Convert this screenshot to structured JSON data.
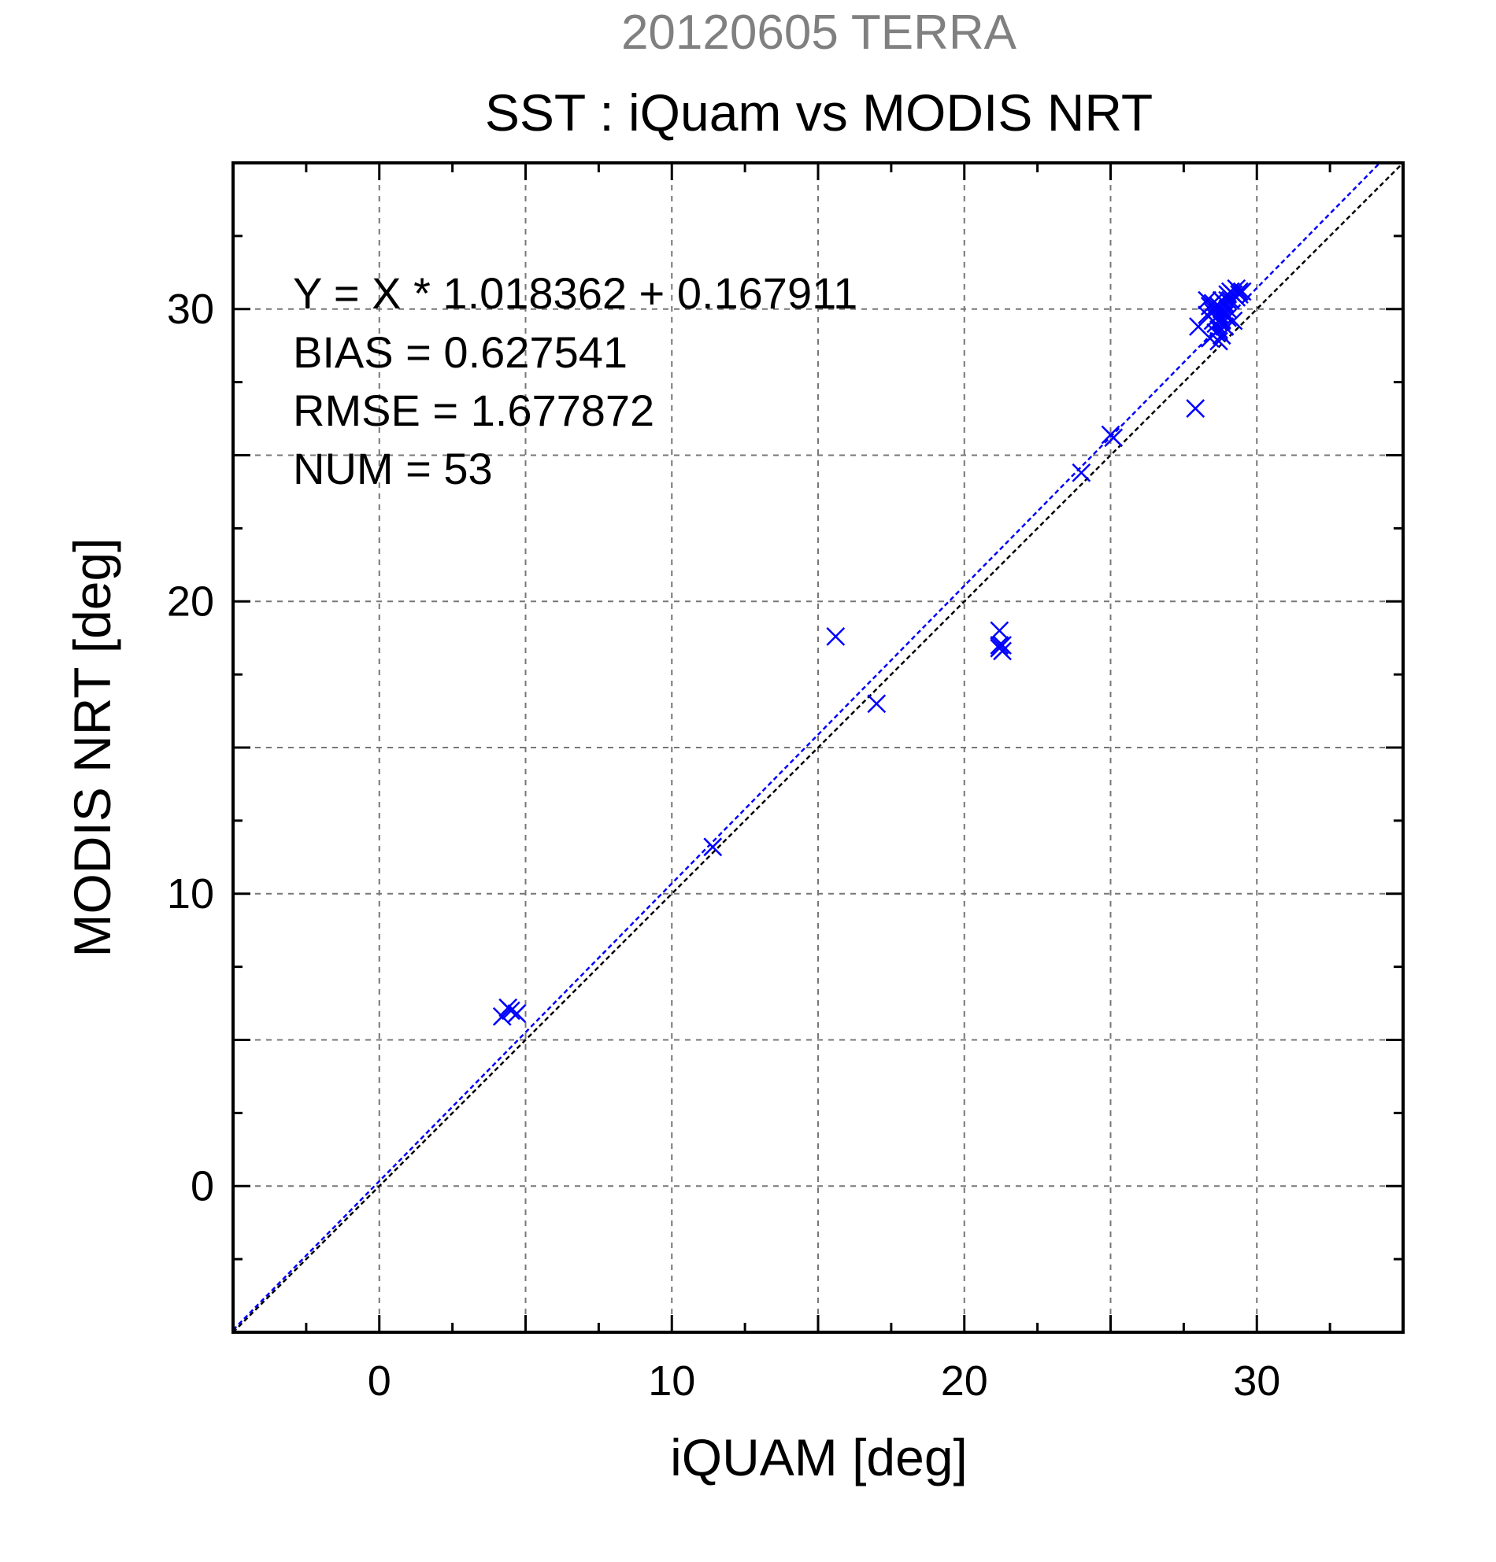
{
  "chart_data": {
    "type": "scatter",
    "supertitle": "20120605 TERRA",
    "title": "SST : iQuam vs MODIS NRT",
    "xlabel": "iQUAM [deg]",
    "ylabel": "MODIS NRT [deg]",
    "xlim": [
      -5,
      35
    ],
    "ylim": [
      -5,
      35
    ],
    "xticks": [
      0,
      10,
      20,
      30
    ],
    "yticks": [
      0,
      10,
      20,
      30
    ],
    "grid": true,
    "annotations": [
      "Y = X * 1.018362 + 0.167911",
      "BIAS = 0.627541",
      "RMSE = 1.677872",
      "NUM = 53"
    ],
    "fit": {
      "slope": 1.018362,
      "intercept": 0.167911
    },
    "series": [
      {
        "color": "#0000ff",
        "marker": "x",
        "points": [
          [
            4.2,
            5.8
          ],
          [
            4.5,
            6.0
          ],
          [
            4.7,
            5.9
          ],
          [
            4.4,
            6.1
          ],
          [
            11.4,
            11.6
          ],
          [
            15.6,
            18.8
          ],
          [
            17.0,
            16.5
          ],
          [
            21.2,
            19.0
          ],
          [
            21.2,
            18.5
          ],
          [
            21.3,
            18.3
          ],
          [
            21.2,
            18.4
          ],
          [
            21.3,
            18.5
          ],
          [
            24.0,
            24.4
          ],
          [
            25.0,
            25.7
          ],
          [
            25.1,
            25.6
          ],
          [
            27.9,
            26.6
          ],
          [
            28.0,
            29.4
          ],
          [
            28.3,
            29.8
          ],
          [
            28.3,
            30.3
          ],
          [
            28.4,
            30.1
          ],
          [
            28.4,
            29.0
          ],
          [
            28.5,
            29.6
          ],
          [
            28.5,
            29.9
          ],
          [
            28.6,
            29.2
          ],
          [
            28.6,
            30.0
          ],
          [
            28.6,
            29.5
          ],
          [
            28.7,
            29.8
          ],
          [
            28.7,
            29.3
          ],
          [
            28.7,
            28.9
          ],
          [
            28.8,
            30.0
          ],
          [
            28.8,
            29.6
          ],
          [
            28.8,
            29.1
          ],
          [
            28.8,
            30.3
          ],
          [
            28.9,
            29.8
          ],
          [
            28.9,
            29.4
          ],
          [
            28.9,
            30.2
          ],
          [
            29.0,
            30.5
          ],
          [
            29.0,
            29.7
          ],
          [
            29.0,
            30.0
          ],
          [
            29.1,
            30.6
          ],
          [
            29.1,
            30.3
          ],
          [
            29.2,
            29.6
          ],
          [
            29.2,
            30.5
          ],
          [
            29.3,
            30.7
          ],
          [
            29.3,
            30.4
          ],
          [
            29.4,
            30.6
          ],
          [
            29.4,
            30.5
          ],
          [
            29.5,
            30.6
          ],
          [
            28.5,
            30.2
          ],
          [
            28.6,
            29.7
          ],
          [
            28.9,
            29.9
          ],
          [
            29.0,
            30.3
          ],
          [
            28.7,
            30.1
          ]
        ]
      }
    ],
    "reference_lines": [
      {
        "type": "identity",
        "color": "#000000",
        "dashed": true
      },
      {
        "type": "fit",
        "color": "#0000ff",
        "dashed": true
      }
    ]
  }
}
